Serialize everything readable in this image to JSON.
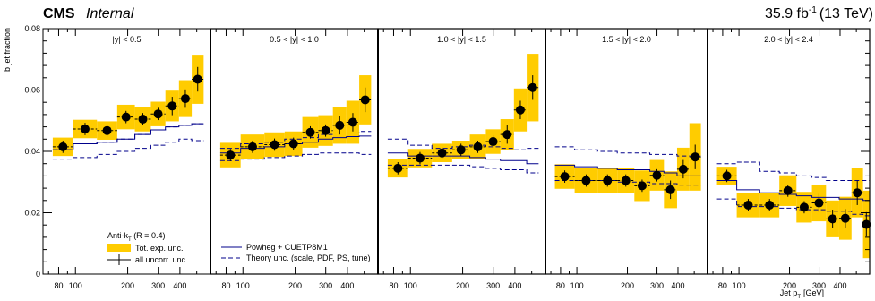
{
  "header": {
    "experiment": "CMS",
    "status": "Internal",
    "lumi_value": "35.9 fb",
    "lumi_exp": "-1",
    "lumi_energy": "(13 TeV)"
  },
  "colors": {
    "exp_band": "#ffcc00",
    "powheg_line": "#00008b",
    "data_marker": "#000000",
    "frame": "#000000"
  },
  "chart_data": {
    "type": "line",
    "title": "",
    "ylabel": "b jet fraction",
    "xlabel": "Jet p",
    "xlabel_sub": "T",
    "xunit": "[GeV]",
    "ylim": [
      0,
      0.08
    ],
    "xlim": [
      65,
      600
    ],
    "xscale": "log",
    "yticks": [
      "0",
      "0.02",
      "0.04",
      "0.06",
      "0.08"
    ],
    "yticks_values": [
      0,
      0.02,
      0.04,
      0.06,
      0.08
    ],
    "xticks": [
      "80",
      "100",
      "200",
      "300",
      "400"
    ],
    "xticks_values": [
      80,
      100,
      200,
      300,
      400
    ],
    "bin_edges": [
      74,
      97,
      133,
      174,
      220,
      272,
      330,
      395,
      468,
      548
    ],
    "legend": {
      "jet_algo": "Anti-k",
      "jet_algo_sub": "T",
      "jet_radius": " (R = 0.4)",
      "exp_band": "Tot. exp. unc.",
      "uncorr": "all uncorr. unc.",
      "powheg": "Powheg + CUETP8M1",
      "theory": "Theory unc. (scale, PDF, PS, tune)"
    },
    "panels": [
      {
        "label": "|y| < 0.5",
        "data": [
          0.0415,
          0.0473,
          0.0468,
          0.0512,
          0.0505,
          0.0522,
          0.0548,
          0.0572,
          0.0635
        ],
        "stat_err": [
          0.002,
          0.002,
          0.002,
          0.002,
          0.002,
          0.002,
          0.003,
          0.003,
          0.004
        ],
        "tot_err": [
          0.003,
          0.003,
          0.003,
          0.004,
          0.004,
          0.004,
          0.005,
          0.006,
          0.008
        ],
        "mc": [
          0.0405,
          0.0425,
          0.043,
          0.044,
          0.0455,
          0.047,
          0.048,
          0.0485,
          0.049
        ],
        "theory_up": [
          0.0405,
          0.0425,
          0.043,
          0.044,
          0.0455,
          0.047,
          0.048,
          0.0485,
          0.049
        ],
        "theory_down": [
          0.0375,
          0.038,
          0.039,
          0.04,
          0.041,
          0.042,
          0.043,
          0.044,
          0.0435
        ]
      },
      {
        "label": "0.5 < |y| < 1.0",
        "data": [
          0.0388,
          0.0415,
          0.0422,
          0.0425,
          0.0462,
          0.0468,
          0.0485,
          0.0495,
          0.0568
        ],
        "stat_err": [
          0.002,
          0.002,
          0.002,
          0.002,
          0.002,
          0.002,
          0.003,
          0.003,
          0.004
        ],
        "tot_err": [
          0.004,
          0.004,
          0.004,
          0.004,
          0.005,
          0.005,
          0.006,
          0.007,
          0.008
        ],
        "mc": [
          0.0395,
          0.041,
          0.0415,
          0.0425,
          0.043,
          0.044,
          0.0445,
          0.0448,
          0.045
        ],
        "theory_up": [
          0.041,
          0.0425,
          0.043,
          0.044,
          0.0445,
          0.0455,
          0.046,
          0.046,
          0.0465
        ],
        "theory_down": [
          0.037,
          0.0375,
          0.038,
          0.0385,
          0.039,
          0.0395,
          0.0395,
          0.0395,
          0.039
        ]
      },
      {
        "label": "1.0 < |y| < 1.5",
        "data": [
          0.0345,
          0.0378,
          0.0395,
          0.0405,
          0.0415,
          0.0432,
          0.0455,
          0.0535,
          0.0608
        ],
        "stat_err": [
          0.002,
          0.002,
          0.002,
          0.002,
          0.002,
          0.002,
          0.003,
          0.003,
          0.004
        ],
        "tot_err": [
          0.003,
          0.003,
          0.003,
          0.003,
          0.004,
          0.004,
          0.005,
          0.007,
          0.011
        ],
        "mc": [
          0.0395,
          0.0385,
          0.0385,
          0.0385,
          0.038,
          0.0375,
          0.037,
          0.037,
          0.036
        ],
        "theory_up": [
          0.044,
          0.042,
          0.041,
          0.0415,
          0.042,
          0.0415,
          0.041,
          0.0405,
          0.041
        ],
        "theory_down": [
          0.0355,
          0.0355,
          0.0355,
          0.0355,
          0.035,
          0.0345,
          0.034,
          0.034,
          0.033
        ]
      },
      {
        "label": "1.5 < |y| < 2.0",
        "data": [
          0.0318,
          0.0305,
          0.0305,
          0.0305,
          0.0288,
          0.0322,
          0.0275,
          0.0342,
          0.0382
        ],
        "stat_err": [
          0.002,
          0.002,
          0.002,
          0.002,
          0.002,
          0.002,
          0.003,
          0.003,
          0.004
        ],
        "tot_err": [
          0.004,
          0.004,
          0.004,
          0.004,
          0.005,
          0.005,
          0.006,
          0.007,
          0.011
        ],
        "mc": [
          0.0355,
          0.035,
          0.0345,
          0.034,
          0.034,
          0.0335,
          0.033,
          0.032,
          0.032
        ],
        "theory_up": [
          0.0415,
          0.0405,
          0.04,
          0.0395,
          0.0395,
          0.039,
          0.039,
          0.0385,
          0.0385
        ],
        "theory_down": [
          0.0305,
          0.0305,
          0.0305,
          0.03,
          0.03,
          0.0295,
          0.0295,
          0.029,
          0.029
        ]
      },
      {
        "label": "2.0 < |y| < 2.4",
        "data": [
          0.032,
          0.0225,
          0.0225,
          0.0272,
          0.0218,
          0.0232,
          0.018,
          0.0182,
          0.0265,
          0.0162
        ],
        "stat_err": [
          0.002,
          0.002,
          0.002,
          0.002,
          0.002,
          0.003,
          0.003,
          0.003,
          0.004,
          0.004
        ],
        "tot_err": [
          0.003,
          0.004,
          0.004,
          0.005,
          0.005,
          0.006,
          0.006,
          0.007,
          0.008,
          0.011
        ],
        "mc": [
          0.0305,
          0.0275,
          0.0265,
          0.026,
          0.0255,
          0.025,
          0.025,
          0.0245,
          0.0245,
          0.024
        ],
        "theory_up": [
          0.036,
          0.0365,
          0.0335,
          0.033,
          0.032,
          0.0315,
          0.0305,
          0.0305,
          0.0305,
          0.0305
        ],
        "theory_down": [
          0.0245,
          0.022,
          0.022,
          0.0215,
          0.021,
          0.021,
          0.0205,
          0.0205,
          0.0195,
          0.019
        ]
      }
    ]
  }
}
